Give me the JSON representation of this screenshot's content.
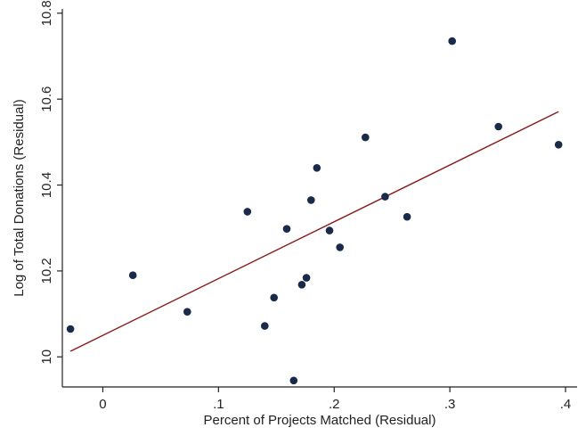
{
  "chart_data": {
    "type": "scatter",
    "title": "",
    "xlabel": "Percent of Projects Matched (Residual)",
    "ylabel": "Log of Total Donations (Residual)",
    "xlim": [
      -0.035,
      0.41
    ],
    "ylim": [
      9.93,
      10.81
    ],
    "x_ticks": [
      {
        "value": 0,
        "label": "0"
      },
      {
        "value": 0.1,
        "label": ".1"
      },
      {
        "value": 0.2,
        "label": ".2"
      },
      {
        "value": 0.3,
        "label": ".3"
      },
      {
        "value": 0.4,
        "label": ".4"
      }
    ],
    "y_ticks": [
      {
        "value": 10.0,
        "label": "10"
      },
      {
        "value": 10.2,
        "label": "10.2"
      },
      {
        "value": 10.4,
        "label": "10.4"
      },
      {
        "value": 10.6,
        "label": "10.6"
      },
      {
        "value": 10.8,
        "label": "10.8"
      }
    ],
    "grid": false,
    "series": [
      {
        "type": "scatter",
        "color": "#1a2a4a",
        "points": [
          {
            "x": -0.028,
            "y": 10.065
          },
          {
            "x": 0.026,
            "y": 10.19
          },
          {
            "x": 0.073,
            "y": 10.105
          },
          {
            "x": 0.125,
            "y": 10.338
          },
          {
            "x": 0.14,
            "y": 10.072
          },
          {
            "x": 0.148,
            "y": 10.138
          },
          {
            "x": 0.159,
            "y": 10.298
          },
          {
            "x": 0.165,
            "y": 9.945
          },
          {
            "x": 0.172,
            "y": 10.168
          },
          {
            "x": 0.176,
            "y": 10.184
          },
          {
            "x": 0.18,
            "y": 10.365
          },
          {
            "x": 0.185,
            "y": 10.44
          },
          {
            "x": 0.196,
            "y": 10.294
          },
          {
            "x": 0.205,
            "y": 10.255
          },
          {
            "x": 0.227,
            "y": 10.511
          },
          {
            "x": 0.244,
            "y": 10.373
          },
          {
            "x": 0.263,
            "y": 10.326
          },
          {
            "x": 0.302,
            "y": 10.735
          },
          {
            "x": 0.342,
            "y": 10.536
          },
          {
            "x": 0.394,
            "y": 10.494
          }
        ]
      },
      {
        "type": "line",
        "color": "#8b1a1a",
        "points": [
          {
            "x": -0.028,
            "y": 10.013
          },
          {
            "x": 0.394,
            "y": 10.571
          }
        ]
      }
    ]
  }
}
